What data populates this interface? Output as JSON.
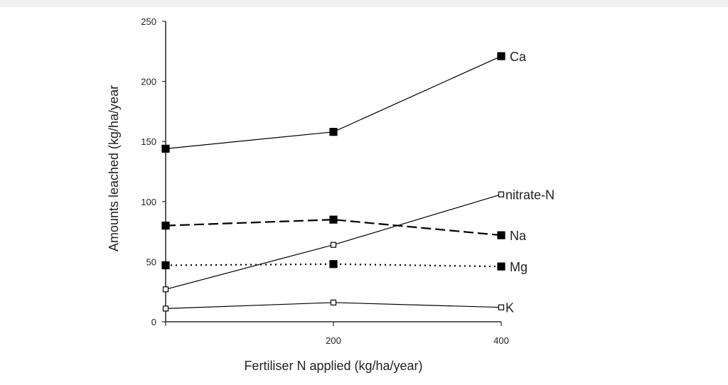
{
  "chart_data": {
    "type": "line",
    "title": "",
    "xlabel": "Fertiliser N applied (kg/ha/year)",
    "ylabel": "Amounts leached (kg/ha/year",
    "x": [
      0,
      200,
      400
    ],
    "xlim": [
      0,
      400
    ],
    "ylim": [
      0,
      250
    ],
    "xticks": [
      200,
      400
    ],
    "yticks": [
      0,
      50,
      100,
      150,
      200,
      250
    ],
    "grid": false,
    "series": [
      {
        "name": "Ca",
        "values": [
          144,
          158,
          221
        ],
        "style": "solid",
        "marker": "filled"
      },
      {
        "name": "nitrate-N",
        "values": [
          27,
          64,
          106
        ],
        "style": "solid",
        "marker": "open"
      },
      {
        "name": "Na",
        "values": [
          80,
          85,
          72
        ],
        "style": "dashed",
        "marker": "filled"
      },
      {
        "name": "Mg",
        "values": [
          47,
          48,
          46
        ],
        "style": "dotted",
        "marker": "filled"
      },
      {
        "name": "K",
        "values": [
          11,
          16,
          12
        ],
        "style": "solid",
        "marker": "open"
      }
    ]
  }
}
